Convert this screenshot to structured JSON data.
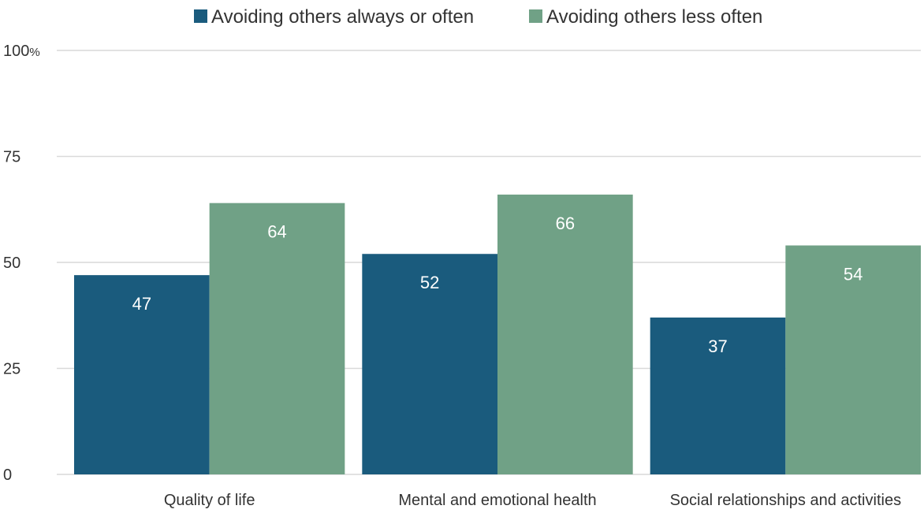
{
  "chart_data": {
    "type": "bar",
    "title": "",
    "xlabel": "",
    "ylabel": "",
    "categories": [
      "Quality of life",
      "Mental and emotional health",
      "Social relationships and activities"
    ],
    "series": [
      {
        "name": "Avoiding others always or often",
        "color": "#1a5b7d",
        "values": [
          47,
          52,
          37
        ]
      },
      {
        "name": "Avoiding others less often",
        "color": "#70a186",
        "values": [
          64,
          66,
          54
        ]
      }
    ],
    "ylim": [
      0,
      100
    ],
    "yticks": [
      {
        "value": 0,
        "label": "0"
      },
      {
        "value": 25,
        "label": "25"
      },
      {
        "value": 50,
        "label": "50"
      },
      {
        "value": 75,
        "label": "75"
      },
      {
        "value": 100,
        "label": "100",
        "unit": "%"
      }
    ],
    "grid": true,
    "legend_position": "top-center",
    "data_labels": true,
    "label_color": "#ffffff",
    "text_color": "#333333",
    "grid_color": "#d9d9d9"
  }
}
